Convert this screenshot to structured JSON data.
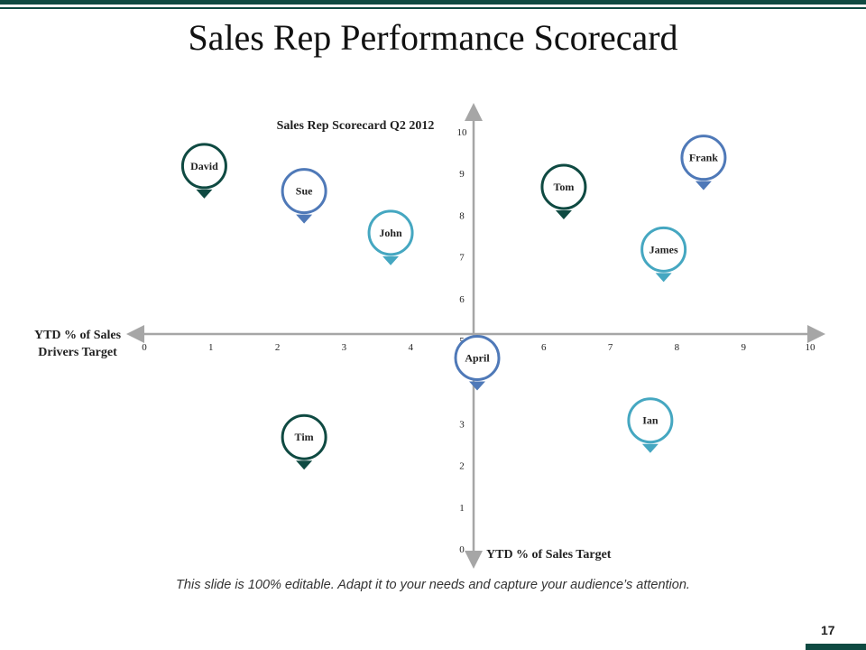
{
  "slide": {
    "title": "Sales Rep Performance Scorecard",
    "caption": "This slide is 100% editable. Adapt it to your needs and capture your audience’s attention.",
    "page_number": "17"
  },
  "colors": {
    "dark_green": "#0f4a42",
    "blue": "#4f79b8",
    "teal": "#45a7c1",
    "axis": "#a6a6a6"
  },
  "chart_data": {
    "type": "scatter",
    "title": "Sales Rep Scorecard Q2 2012",
    "xlabel": "YTD % of Sales Drivers Target",
    "ylabel": "YTD % of Sales Target",
    "xlim": [
      0,
      10
    ],
    "ylim": [
      0,
      10
    ],
    "x_ticks": [
      "0",
      "1",
      "2",
      "3",
      "4",
      "5",
      "6",
      "7",
      "8",
      "9",
      "10"
    ],
    "y_ticks": [
      "0",
      "1",
      "2",
      "3",
      "5",
      "6",
      "7",
      "8",
      "9",
      "10"
    ],
    "grid": false,
    "points": [
      {
        "name": "David",
        "x": 0.9,
        "y": 8.4,
        "color": "#0f4a42"
      },
      {
        "name": "Sue",
        "x": 2.4,
        "y": 7.8,
        "color": "#4f79b8"
      },
      {
        "name": "John",
        "x": 3.7,
        "y": 6.8,
        "color": "#45a7c1"
      },
      {
        "name": "Tom",
        "x": 6.3,
        "y": 7.9,
        "color": "#0f4a42"
      },
      {
        "name": "Frank",
        "x": 8.4,
        "y": 8.6,
        "color": "#4f79b8"
      },
      {
        "name": "James",
        "x": 7.8,
        "y": 6.4,
        "color": "#45a7c1"
      },
      {
        "name": "April",
        "x": 5.0,
        "y": 3.8,
        "color": "#4f79b8"
      },
      {
        "name": "Ian",
        "x": 7.6,
        "y": 2.3,
        "color": "#45a7c1"
      },
      {
        "name": "Tim",
        "x": 2.4,
        "y": 1.9,
        "color": "#0f4a42"
      }
    ]
  }
}
